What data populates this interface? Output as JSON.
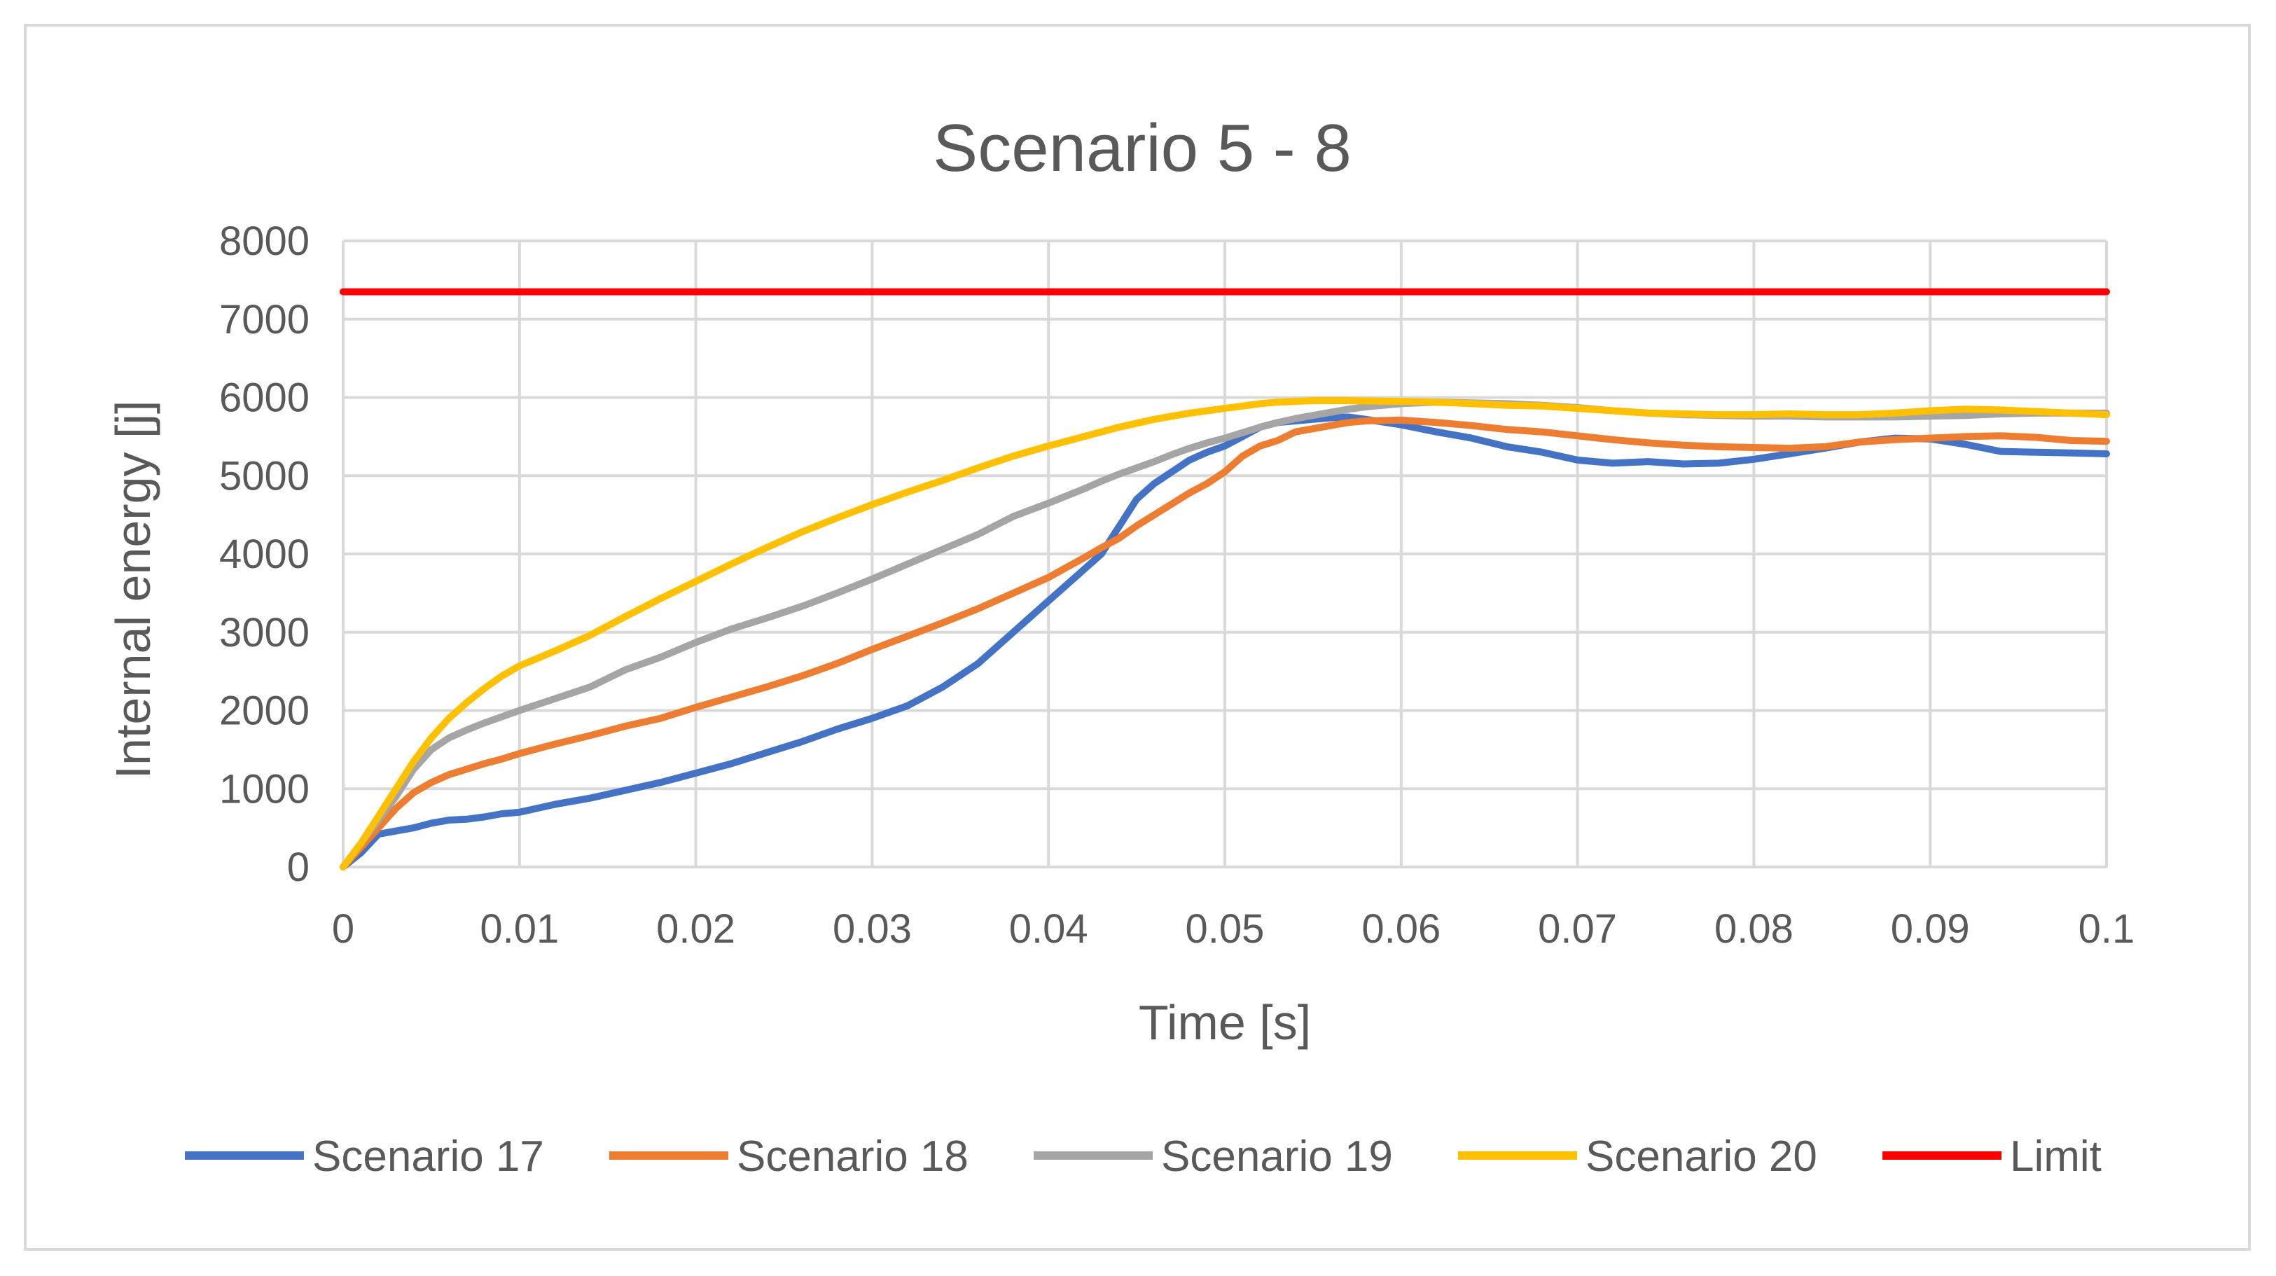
{
  "chart_data": {
    "type": "line",
    "title": "Scenario 5 - 8",
    "xlabel": "Time [s]",
    "ylabel": "Internal energy [j]",
    "xlim": [
      0,
      0.1
    ],
    "ylim": [
      0,
      8000
    ],
    "x_ticks": [
      "0",
      "0.01",
      "0.02",
      "0.03",
      "0.04",
      "0.05",
      "0.06",
      "0.07",
      "0.08",
      "0.09",
      "0.1"
    ],
    "y_ticks": [
      "0",
      "1000",
      "2000",
      "3000",
      "4000",
      "5000",
      "6000",
      "7000",
      "8000"
    ],
    "grid": true,
    "legend_position": "bottom",
    "x": [
      0,
      0.001,
      0.002,
      0.003,
      0.004,
      0.005,
      0.006,
      0.007,
      0.008,
      0.009,
      0.01,
      0.012,
      0.014,
      0.016,
      0.018,
      0.02,
      0.022,
      0.024,
      0.026,
      0.028,
      0.03,
      0.032,
      0.034,
      0.036,
      0.038,
      0.04,
      0.042,
      0.043,
      0.044,
      0.045,
      0.046,
      0.047,
      0.048,
      0.049,
      0.05,
      0.051,
      0.052,
      0.053,
      0.054,
      0.055,
      0.056,
      0.057,
      0.058,
      0.06,
      0.062,
      0.064,
      0.066,
      0.068,
      0.07,
      0.072,
      0.074,
      0.076,
      0.078,
      0.08,
      0.082,
      0.084,
      0.086,
      0.088,
      0.09,
      0.092,
      0.094,
      0.096,
      0.098,
      0.1
    ],
    "series": [
      {
        "name": "Scenario 17",
        "color": "#4472C4",
        "values": [
          0,
          180,
          420,
          460,
          500,
          560,
          600,
          610,
          640,
          680,
          700,
          800,
          880,
          980,
          1080,
          1200,
          1320,
          1460,
          1600,
          1760,
          1900,
          2060,
          2300,
          2600,
          3000,
          3400,
          3800,
          4000,
          4350,
          4700,
          4900,
          5050,
          5200,
          5300,
          5380,
          5500,
          5620,
          5680,
          5700,
          5720,
          5740,
          5750,
          5720,
          5650,
          5560,
          5480,
          5370,
          5300,
          5200,
          5160,
          5180,
          5150,
          5160,
          5210,
          5280,
          5350,
          5430,
          5480,
          5470,
          5400,
          5310,
          5300,
          5290,
          5280
        ]
      },
      {
        "name": "Scenario 18",
        "color": "#ED7D31",
        "values": [
          0,
          250,
          500,
          750,
          950,
          1080,
          1180,
          1250,
          1320,
          1380,
          1450,
          1570,
          1680,
          1800,
          1900,
          2040,
          2170,
          2300,
          2440,
          2600,
          2780,
          2950,
          3120,
          3300,
          3500,
          3700,
          3950,
          4080,
          4200,
          4360,
          4500,
          4640,
          4780,
          4900,
          5050,
          5250,
          5380,
          5450,
          5560,
          5600,
          5640,
          5680,
          5700,
          5710,
          5680,
          5640,
          5590,
          5560,
          5510,
          5460,
          5420,
          5390,
          5370,
          5360,
          5350,
          5370,
          5430,
          5460,
          5480,
          5500,
          5510,
          5490,
          5450,
          5440
        ]
      },
      {
        "name": "Scenario 19",
        "color": "#A5A5A5",
        "values": [
          0,
          300,
          600,
          900,
          1250,
          1500,
          1650,
          1750,
          1840,
          1920,
          2000,
          2150,
          2300,
          2520,
          2680,
          2870,
          3040,
          3180,
          3330,
          3500,
          3680,
          3870,
          4060,
          4250,
          4480,
          4650,
          4830,
          4930,
          5020,
          5100,
          5180,
          5270,
          5350,
          5420,
          5480,
          5550,
          5620,
          5680,
          5730,
          5770,
          5810,
          5850,
          5880,
          5920,
          5940,
          5930,
          5920,
          5900,
          5870,
          5830,
          5800,
          5780,
          5770,
          5760,
          5760,
          5750,
          5750,
          5750,
          5760,
          5770,
          5790,
          5800,
          5800,
          5800
        ]
      },
      {
        "name": "Scenario 20",
        "color": "#FFC000",
        "values": [
          0,
          300,
          650,
          1000,
          1350,
          1650,
          1900,
          2100,
          2280,
          2440,
          2570,
          2760,
          2960,
          3200,
          3430,
          3650,
          3870,
          4080,
          4280,
          4460,
          4630,
          4790,
          4940,
          5100,
          5250,
          5380,
          5500,
          5560,
          5620,
          5670,
          5720,
          5760,
          5800,
          5830,
          5860,
          5890,
          5920,
          5940,
          5950,
          5960,
          5960,
          5960,
          5955,
          5950,
          5940,
          5920,
          5900,
          5890,
          5860,
          5830,
          5800,
          5790,
          5780,
          5780,
          5790,
          5780,
          5780,
          5800,
          5830,
          5850,
          5840,
          5820,
          5800,
          5780
        ]
      },
      {
        "name": "Limit",
        "color": "#FF0000",
        "values": [
          7350,
          7350,
          7350,
          7350,
          7350,
          7350,
          7350,
          7350,
          7350,
          7350,
          7350,
          7350,
          7350,
          7350,
          7350,
          7350,
          7350,
          7350,
          7350,
          7350,
          7350,
          7350,
          7350,
          7350,
          7350,
          7350,
          7350,
          7350,
          7350,
          7350,
          7350,
          7350,
          7350,
          7350,
          7350,
          7350,
          7350,
          7350,
          7350,
          7350,
          7350,
          7350,
          7350,
          7350,
          7350,
          7350,
          7350,
          7350,
          7350,
          7350,
          7350,
          7350,
          7350,
          7350,
          7350,
          7350,
          7350,
          7350,
          7350,
          7350,
          7350,
          7350,
          7350,
          7350
        ]
      }
    ]
  },
  "colors": {
    "gridline": "#d9d9d9",
    "text": "#595959",
    "frame": "#d9d9d9"
  }
}
